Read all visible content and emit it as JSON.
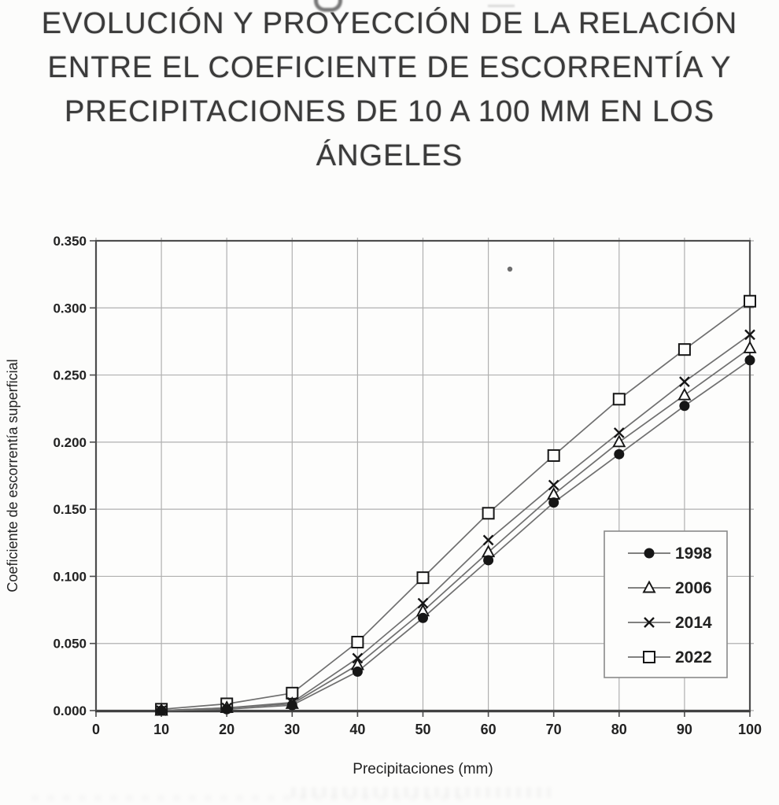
{
  "title": {
    "lines": [
      "EVOLUCIÓN Y PROYECCIÓN DE LA RELACIÓN",
      "ENTRE EL COEFICIENTE DE ESCORRENTÍA Y",
      "PRECIPITACIONES DE 10 A 100 MM EN LOS",
      "ÁNGELES"
    ]
  },
  "chart_data": {
    "type": "line",
    "title": "EVOLUCIÓN Y PROYECCIÓN DE LA RELACIÓN ENTRE EL COEFICIENTE DE ESCORRENTÍA Y PRECIPITACIONES DE 10 A 100 MM EN LOS ÁNGELES",
    "xlabel": "Precipitaciones (mm)",
    "ylabel": "Coeficiente de escorrentía superficial",
    "xlim": [
      0,
      100
    ],
    "ylim": [
      0,
      0.35
    ],
    "grid": true,
    "legend_position": "inside-right",
    "x_tick_labels": [
      "0",
      "10",
      "20",
      "30",
      "40",
      "50",
      "60",
      "70",
      "80",
      "90",
      "100"
    ],
    "y_tick_labels": [
      "0.000",
      "0.050",
      "0.100",
      "0.150",
      "0.200",
      "0.250",
      "0.300",
      "0.350"
    ],
    "x": [
      10,
      20,
      30,
      40,
      50,
      60,
      70,
      80,
      90,
      100
    ],
    "series": [
      {
        "name": "1998",
        "marker": "circle-filled",
        "values": [
          0.0,
          0.001,
          0.004,
          0.029,
          0.069,
          0.112,
          0.155,
          0.191,
          0.227,
          0.261
        ]
      },
      {
        "name": "2006",
        "marker": "triangle-open",
        "values": [
          0.0,
          0.002,
          0.005,
          0.034,
          0.074,
          0.118,
          0.161,
          0.2,
          0.235,
          0.27
        ]
      },
      {
        "name": "2014",
        "marker": "x",
        "values": [
          0.0,
          0.002,
          0.006,
          0.039,
          0.08,
          0.127,
          0.168,
          0.207,
          0.245,
          0.28
        ]
      },
      {
        "name": "2022",
        "marker": "square-open",
        "values": [
          0.001,
          0.005,
          0.013,
          0.051,
          0.099,
          0.147,
          0.19,
          0.232,
          0.269,
          0.305
        ]
      }
    ],
    "colors": {
      "line": "#6f6f6f",
      "marker": "#161616",
      "grid": "#b0b0b0",
      "border": "#4d4d4d",
      "text": "#222222"
    }
  }
}
